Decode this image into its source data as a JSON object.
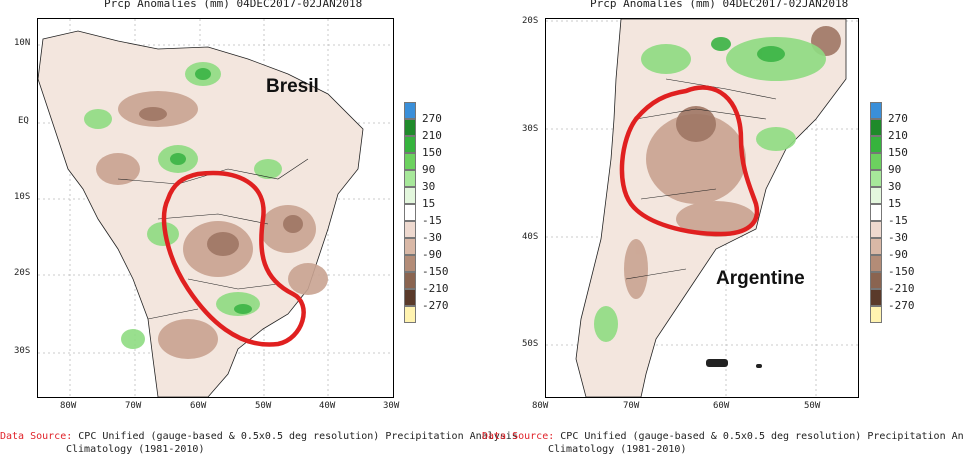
{
  "maps": [
    {
      "title": "Prcp Anomalies (mm) 04DEC2017-02JAN2018",
      "region_label": "Bresil",
      "lat_labels": [
        "10N",
        "EQ",
        "10S",
        "20S",
        "30S"
      ],
      "lon_labels": [
        "80W",
        "70W",
        "60W",
        "50W",
        "40W",
        "30W"
      ],
      "legend_labels": [
        "270",
        "210",
        "150",
        "90",
        "30",
        "15",
        "-15",
        "-30",
        "-90",
        "-150",
        "-210",
        "-270"
      ]
    },
    {
      "title": "Prcp Anomalies (mm) 04DEC2017-02JAN2018",
      "region_label": "Argentine",
      "lat_labels": [
        "20S",
        "30S",
        "40S",
        "50S"
      ],
      "lon_labels": [
        "80W",
        "70W",
        "60W",
        "50W"
      ],
      "legend_labels": [
        "270",
        "210",
        "150",
        "90",
        "30",
        "15",
        "-15",
        "-30",
        "-90",
        "-150",
        "-210",
        "-270"
      ]
    }
  ],
  "legend_colors": [
    "#3a8fd9",
    "#1f8a2a",
    "#36b33d",
    "#6cd15f",
    "#a7e89a",
    "#e3f7dd",
    "#ffffff",
    "#eed9cf",
    "#d9b8a6",
    "#b38c77",
    "#8a6450",
    "#5a3a2a",
    "#fff3b0"
  ],
  "data_source": {
    "key": "Data Source:",
    "value_line1": "CPC Unified (gauge-based & 0.5x0.5 deg resolution) Precipitation Analysis",
    "value_line2": "Climatology (1981-2010)"
  },
  "annotation_color": "#e02020"
}
